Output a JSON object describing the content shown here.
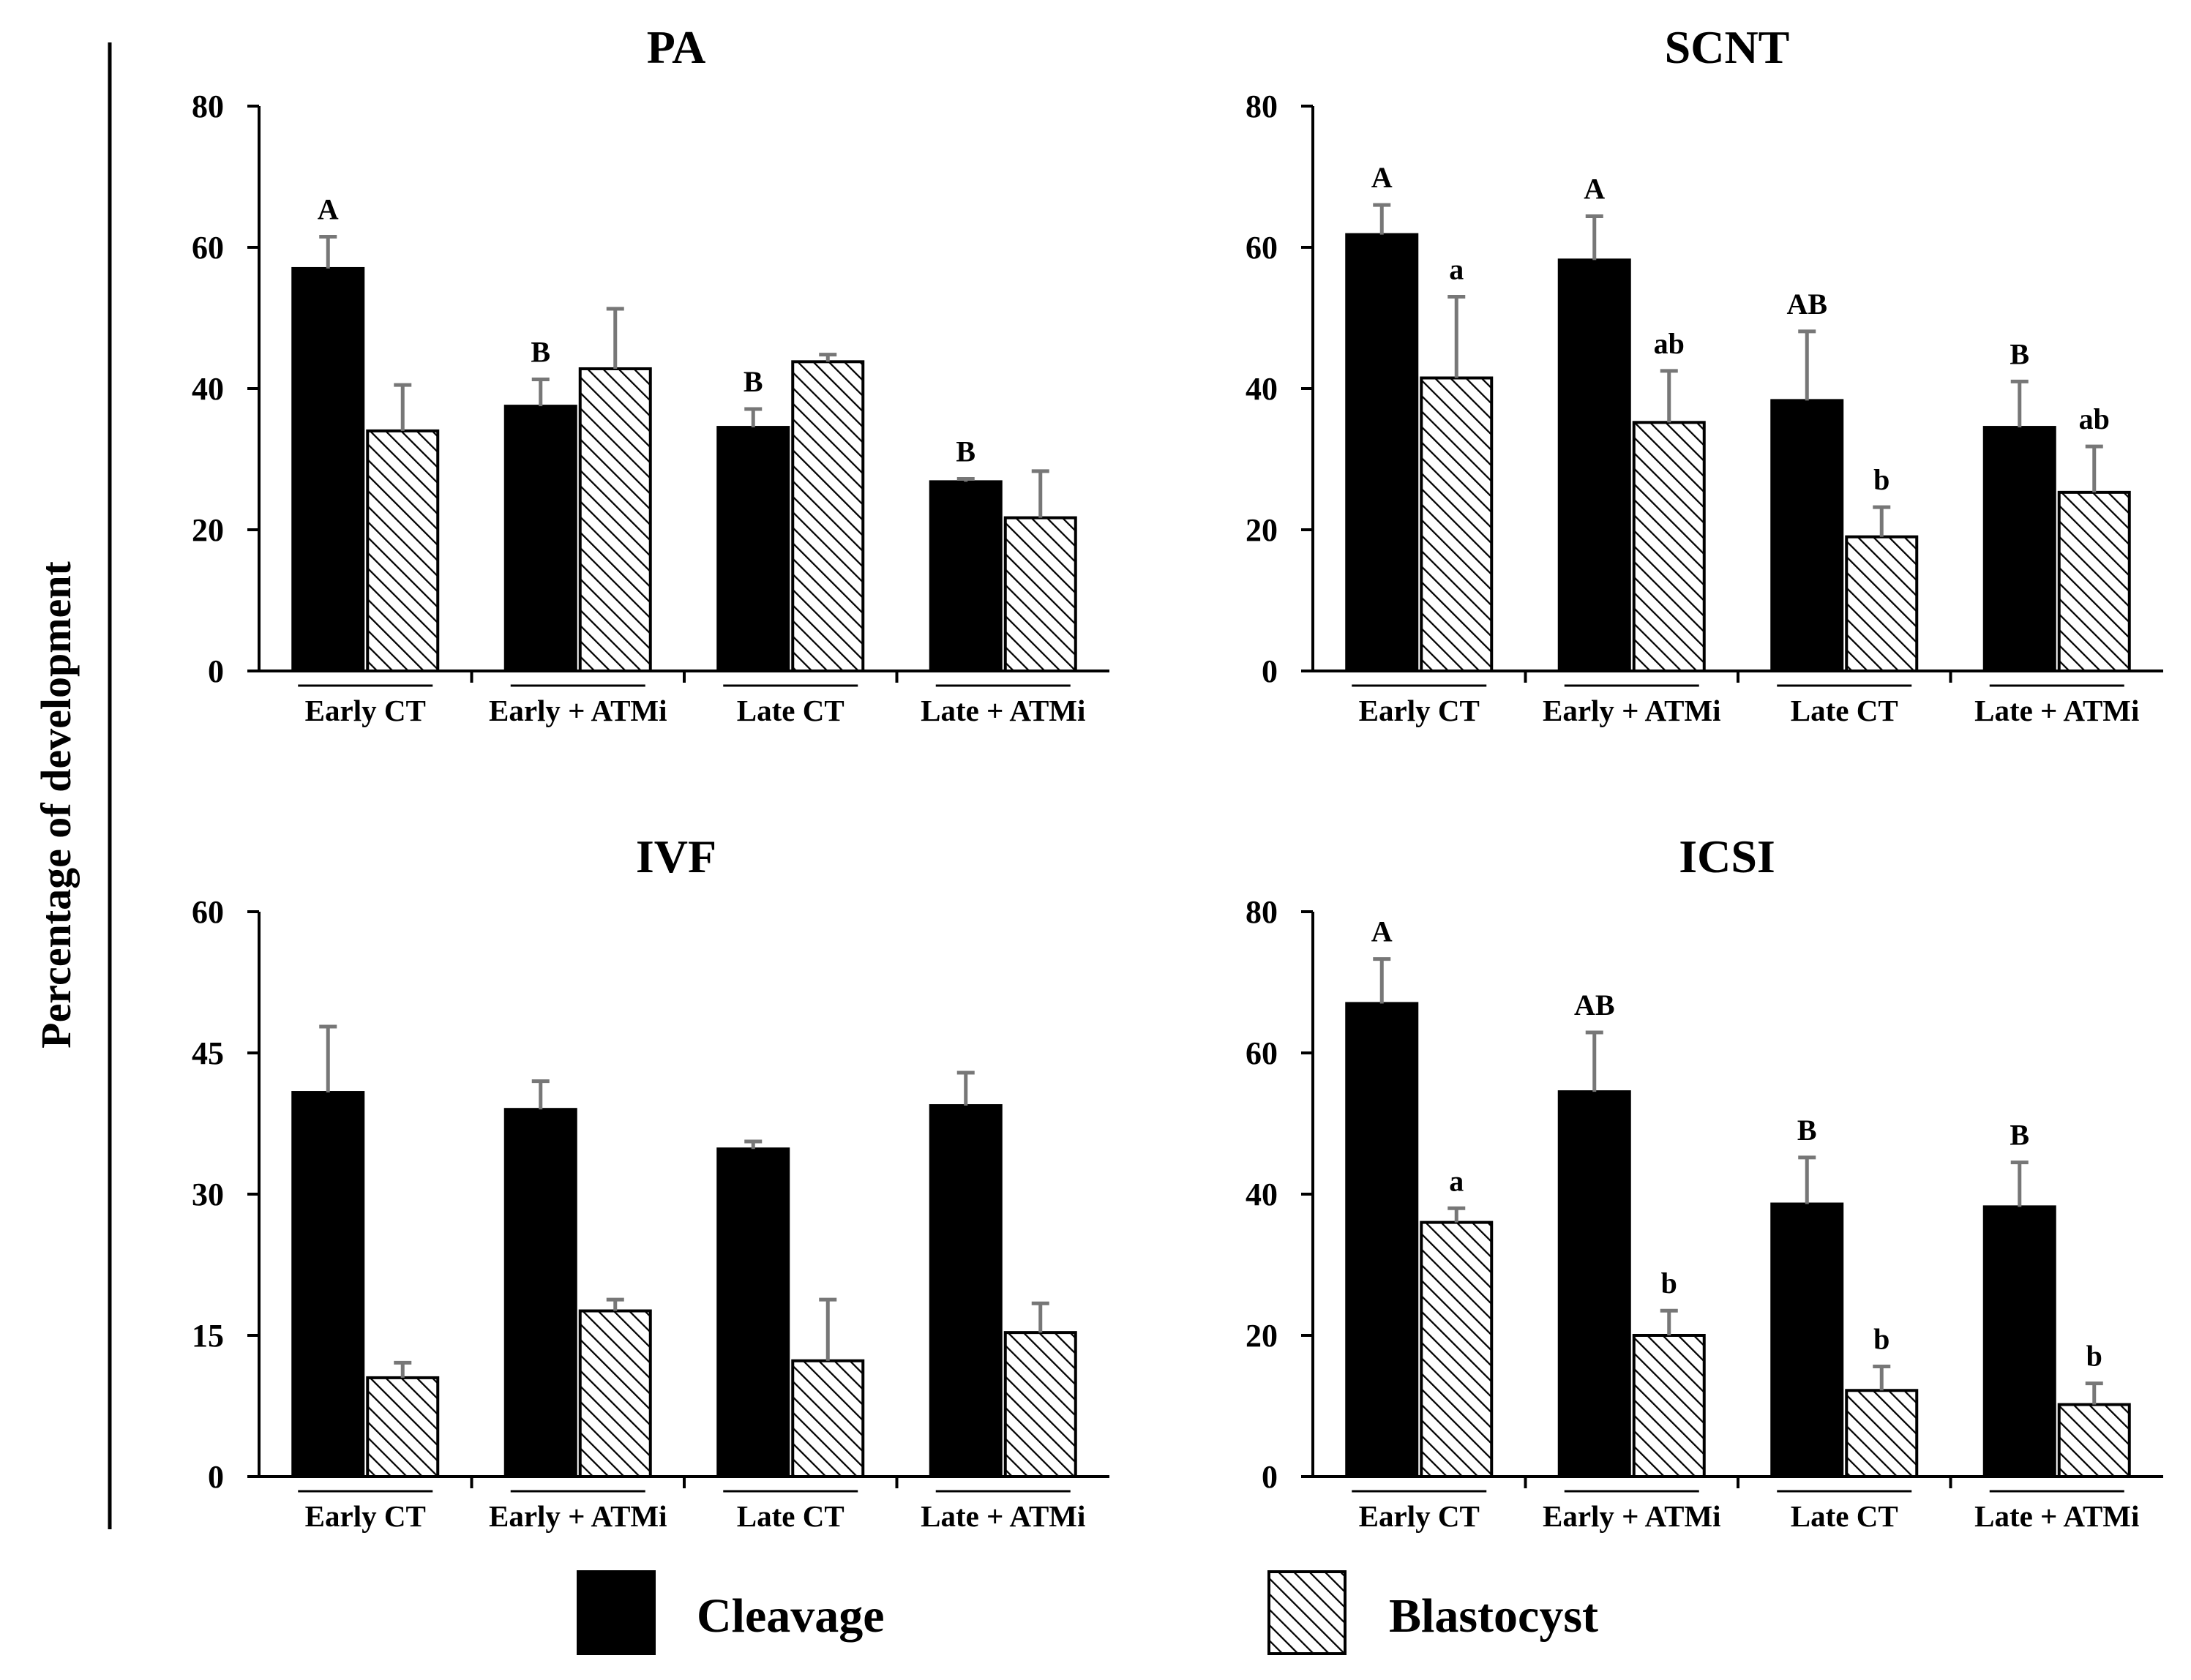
{
  "figure": {
    "ylabel": "Percentage of development",
    "legend": [
      {
        "label": "Cleavage",
        "fill": "#000000"
      },
      {
        "label": "Blastocyst",
        "fill": "hatch"
      }
    ]
  },
  "chart_data": [
    {
      "type": "bar",
      "title": "PA",
      "categories": [
        "Early CT",
        "Early + ATMi",
        "Late CT",
        "Late + ATMi"
      ],
      "ylim": [
        0,
        80
      ],
      "yticks": [
        0,
        20,
        40,
        60,
        80
      ],
      "series": [
        {
          "name": "Cleavage",
          "values": [
            57,
            37.5,
            34.5,
            26.8
          ],
          "errors": [
            4.5,
            3.8,
            2.6,
            0.4
          ],
          "labels": [
            "A",
            "B",
            "B",
            "B"
          ]
        },
        {
          "name": "Blastocyst",
          "values": [
            34,
            42.8,
            43.8,
            21.7
          ],
          "errors": [
            6.5,
            8.5,
            1.0,
            6.6
          ],
          "labels": [
            "",
            "",
            "",
            ""
          ]
        }
      ]
    },
    {
      "type": "bar",
      "title": "SCNT",
      "categories": [
        "Early CT",
        "Early + ATMi",
        "Late CT",
        "Late + ATMi"
      ],
      "ylim": [
        0,
        80
      ],
      "yticks": [
        0,
        20,
        40,
        60,
        80
      ],
      "series": [
        {
          "name": "Cleavage",
          "values": [
            61.8,
            58.2,
            38.3,
            34.5
          ],
          "errors": [
            4.2,
            6.2,
            9.8,
            6.5
          ],
          "labels": [
            "A",
            "A",
            "AB",
            "B"
          ]
        },
        {
          "name": "Blastocyst",
          "values": [
            41.5,
            35.2,
            19,
            25.3
          ],
          "errors": [
            11.5,
            7.3,
            4.2,
            6.5
          ],
          "labels": [
            "a",
            "ab",
            "b",
            "ab"
          ]
        }
      ]
    },
    {
      "type": "bar",
      "title": "IVF",
      "categories": [
        "Early CT",
        "Early + ATMi",
        "Late CT",
        "Late + ATMi"
      ],
      "ylim": [
        0,
        60
      ],
      "yticks": [
        0,
        15,
        30,
        45,
        60
      ],
      "series": [
        {
          "name": "Cleavage",
          "values": [
            40.8,
            39,
            34.8,
            39.4
          ],
          "errors": [
            7,
            3,
            0.8,
            3.5
          ],
          "labels": [
            "",
            "",
            "",
            ""
          ]
        },
        {
          "name": "Blastocyst",
          "values": [
            10.5,
            17.6,
            12.3,
            15.3
          ],
          "errors": [
            1.6,
            1.2,
            6.5,
            3.1
          ],
          "labels": [
            "",
            "",
            "",
            ""
          ]
        }
      ]
    },
    {
      "type": "bar",
      "title": "ICSI",
      "categories": [
        "Early CT",
        "Early + ATMi",
        "Late CT",
        "Late + ATMi"
      ],
      "ylim": [
        0,
        80
      ],
      "yticks": [
        0,
        20,
        40,
        60,
        80
      ],
      "series": [
        {
          "name": "Cleavage",
          "values": [
            67,
            54.5,
            38.6,
            38.2
          ],
          "errors": [
            6.3,
            8.4,
            6.6,
            6.3
          ],
          "labels": [
            "A",
            "AB",
            "B",
            "B"
          ]
        },
        {
          "name": "Blastocyst",
          "values": [
            36,
            20,
            12.2,
            10.2
          ],
          "errors": [
            2.0,
            3.5,
            3.4,
            3.0
          ],
          "labels": [
            "a",
            "b",
            "b",
            "b"
          ]
        }
      ]
    }
  ]
}
